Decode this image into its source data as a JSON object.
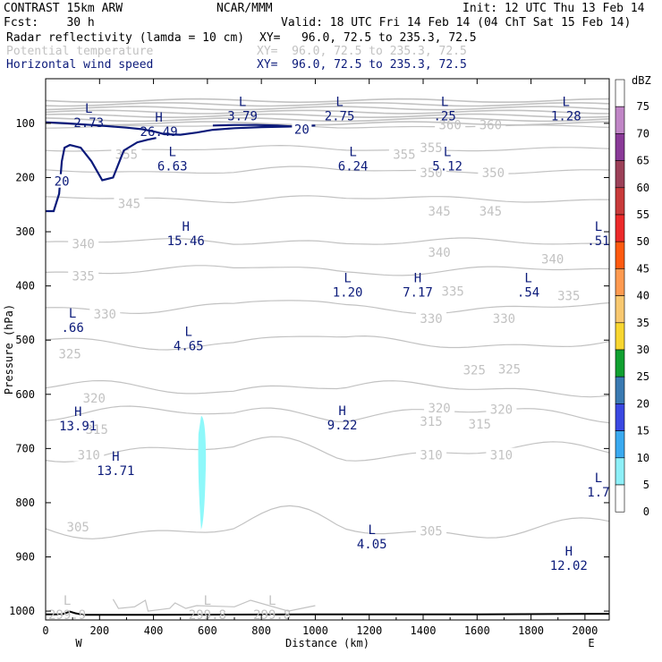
{
  "header": {
    "model": "CONTRAST 15km ARW",
    "org": "NCAR/MMM",
    "init": "Init: 12 UTC Thu 13 Feb 14",
    "fcst": "Fcst:    30 h",
    "valid": "Valid: 18 UTC Fri 14 Feb 14 (04 ChT Sat 15 Feb 14)",
    "fields": [
      {
        "name": "Radar reflectivity (lamda = 10 cm)",
        "xy": "XY=   96.0, 72.5 to 235.3, 72.5"
      },
      {
        "name": "Potential temperature",
        "xy": "XY=  96.0, 72.5 to 235.3, 72.5"
      },
      {
        "name": "Horizontal wind speed",
        "xy": "XY=  96.0, 72.5 to 235.3, 72.5"
      }
    ]
  },
  "chart_data": {
    "type": "cross-section",
    "xlabel": "Distance (km)",
    "ylabel": "Pressure (hPa)",
    "x_ticks": [
      0,
      200,
      400,
      600,
      800,
      1000,
      1200,
      1400,
      1600,
      1800,
      2000
    ],
    "xlim": [
      0,
      2090
    ],
    "y_ticks": [
      100,
      200,
      300,
      400,
      500,
      600,
      700,
      800,
      900,
      1000
    ],
    "ylim": [
      50,
      1050
    ],
    "x_end_labels": {
      "left": "W",
      "right": "E"
    },
    "colorbar": {
      "unit": "dBZ",
      "levels": [
        75,
        70,
        65,
        60,
        55,
        50,
        45,
        40,
        35,
        30,
        25,
        20,
        15,
        10,
        5,
        0
      ],
      "colors": [
        "#ffffff",
        "#c086c6",
        "#8a3a98",
        "#9c4058",
        "#c83a3a",
        "#ec2a2a",
        "#ff5a10",
        "#ff9a50",
        "#f8c870",
        "#f8d630",
        "#10a030",
        "#3a7ab2",
        "#3a48e2",
        "#3aaaf0",
        "#8ef0f8",
        "#ffffff"
      ]
    },
    "theta_contours": [
      {
        "value": 305,
        "labels": [
          [
            120,
            845
          ],
          [
            1430,
            852
          ]
        ]
      },
      {
        "value": 310,
        "labels": [
          [
            160,
            712
          ],
          [
            1430,
            712
          ],
          [
            1690,
            712
          ]
        ]
      },
      {
        "value": 315,
        "labels": [
          [
            190,
            665
          ],
          [
            1430,
            650
          ],
          [
            1610,
            655
          ]
        ]
      },
      {
        "value": 320,
        "labels": [
          [
            180,
            607
          ],
          [
            1460,
            625
          ],
          [
            1690,
            628
          ]
        ]
      },
      {
        "value": 325,
        "labels": [
          [
            90,
            525
          ],
          [
            1590,
            555
          ],
          [
            1720,
            553
          ]
        ]
      },
      {
        "value": 330,
        "labels": [
          [
            220,
            452
          ],
          [
            1430,
            460
          ],
          [
            1700,
            460
          ]
        ]
      },
      {
        "value": 335,
        "labels": [
          [
            140,
            382
          ],
          [
            1510,
            410
          ],
          [
            1940,
            418
          ]
        ]
      },
      {
        "value": 340,
        "labels": [
          [
            140,
            322
          ],
          [
            1460,
            338
          ],
          [
            1880,
            350
          ]
        ]
      },
      {
        "value": 345,
        "labels": [
          [
            310,
            248
          ],
          [
            1460,
            262
          ],
          [
            1650,
            262
          ]
        ]
      },
      {
        "value": 350,
        "labels": [
          [
            1430,
            191
          ],
          [
            1660,
            191
          ]
        ]
      },
      {
        "value": 355,
        "labels": [
          [
            300,
            157
          ],
          [
            1330,
            157
          ],
          [
            1430,
            145
          ]
        ]
      },
      {
        "value": 360,
        "labels": [
          [
            1500,
            103
          ],
          [
            1650,
            103
          ]
        ]
      }
    ],
    "wind_speed_contours": [
      {
        "value": 20,
        "labels": [
          [
            60,
            207
          ],
          [
            950,
            111
          ]
        ]
      }
    ],
    "extrema": [
      {
        "kind": "L",
        "value": "2.73",
        "x": 160,
        "p": 100
      },
      {
        "kind": "H",
        "value": "26.49",
        "x": 420,
        "p": 117
      },
      {
        "kind": "L",
        "value": "3.79",
        "x": 730,
        "p": 88
      },
      {
        "kind": "L",
        "value": "2.75",
        "x": 1090,
        "p": 88
      },
      {
        "kind": "L",
        "value": ".25",
        "x": 1480,
        "p": 88
      },
      {
        "kind": "L",
        "value": "1.28",
        "x": 1930,
        "p": 88
      },
      {
        "kind": "L",
        "value": "6.63",
        "x": 470,
        "p": 180
      },
      {
        "kind": "L",
        "value": "6.24",
        "x": 1140,
        "p": 180
      },
      {
        "kind": "L",
        "value": "5.12",
        "x": 1490,
        "p": 180
      },
      {
        "kind": "H",
        "value": "15.46",
        "x": 520,
        "p": 318
      },
      {
        "kind": "L",
        "value": ".51",
        "x": 2050,
        "p": 318
      },
      {
        "kind": "L",
        "value": "1.20",
        "x": 1120,
        "p": 413
      },
      {
        "kind": "H",
        "value": "7.17",
        "x": 1380,
        "p": 413
      },
      {
        "kind": "L",
        "value": ".54",
        "x": 1790,
        "p": 413
      },
      {
        "kind": "L",
        "value": ".66",
        "x": 100,
        "p": 478
      },
      {
        "kind": "L",
        "value": "4.65",
        "x": 530,
        "p": 512
      },
      {
        "kind": "H",
        "value": "13.91",
        "x": 120,
        "p": 660
      },
      {
        "kind": "H",
        "value": "9.22",
        "x": 1100,
        "p": 658
      },
      {
        "kind": "H",
        "value": "13.71",
        "x": 260,
        "p": 742
      },
      {
        "kind": "L",
        "value": "1.7",
        "x": 2050,
        "p": 782
      },
      {
        "kind": "L",
        "value": "4.05",
        "x": 1210,
        "p": 878
      },
      {
        "kind": "H",
        "value": "12.02",
        "x": 1940,
        "p": 917
      },
      {
        "kind": "L",
        "value": "299.9",
        "x": 80,
        "p": 1008
      },
      {
        "kind": "L",
        "value": "299.8",
        "x": 600,
        "p": 1008
      },
      {
        "kind": "L",
        "value": "299.8",
        "x": 840,
        "p": 1008
      }
    ],
    "reflectivity_feature": {
      "x_range": [
        565,
        595
      ],
      "p_range": [
        640,
        850
      ],
      "dbz": 7
    }
  }
}
